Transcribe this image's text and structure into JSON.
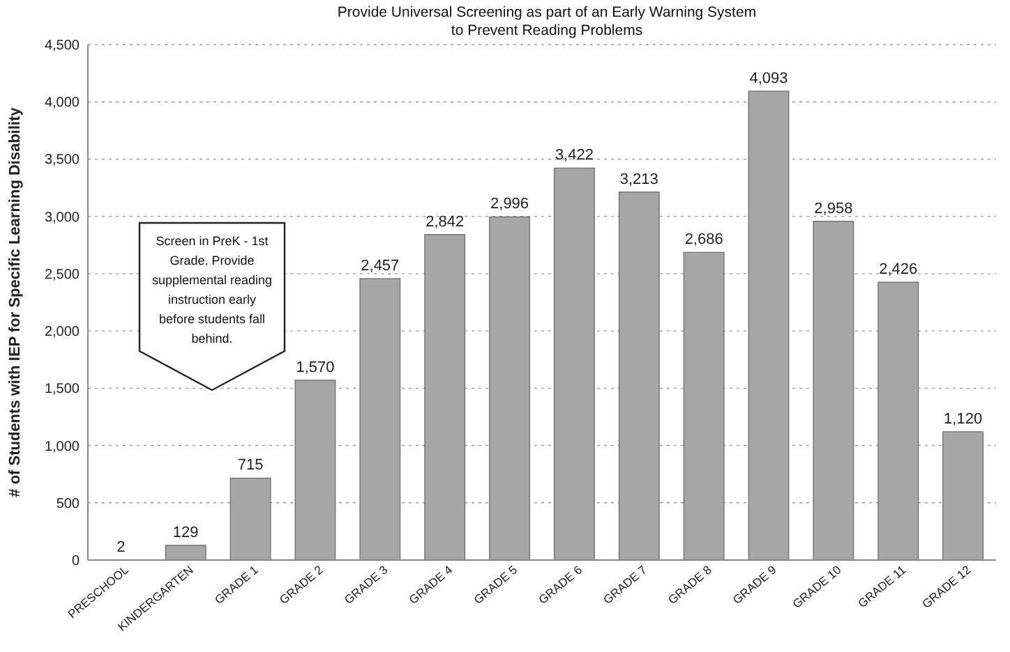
{
  "chart_data": {
    "type": "bar",
    "title": "Provide Universal Screening as part of an Early Warning System\nto Prevent Reading Problems",
    "ylabel": "# of Students with IEP for Specific Learning Disability",
    "categories": [
      "PRESCHOOL",
      "KINDERGARTEN",
      "GRADE 1",
      "GRADE 2",
      "GRADE 3",
      "GRADE 4",
      "GRADE 5",
      "GRADE 6",
      "GRADE 7",
      "GRADE 8",
      "GRADE 9",
      "GRADE 10",
      "GRADE 11",
      "GRADE 12"
    ],
    "values": [
      2,
      129,
      715,
      1570,
      2457,
      2842,
      2996,
      3422,
      3213,
      2686,
      4093,
      2958,
      2426,
      1120
    ],
    "value_labels": [
      "2",
      "129",
      "715",
      "1,570",
      "2,457",
      "2,842",
      "2,996",
      "3,422",
      "3,213",
      "2,686",
      "4,093",
      "2,958",
      "2,426",
      "1,120"
    ],
    "color": "#a6a6a6",
    "ylim": [
      0,
      4500
    ],
    "yticks": [
      0,
      {
        "value": 500,
        "label": "500"
      },
      {
        "value": 1000,
        "label": "1,000"
      },
      {
        "value": 1500,
        "label": "1,500"
      },
      {
        "value": 2000,
        "label": "2,000"
      },
      {
        "value": 2500,
        "label": "2,500"
      },
      {
        "value": 3000,
        "label": "3,000"
      },
      {
        "value": 3500,
        "label": "3,500"
      },
      {
        "value": 4000,
        "label": "4,000"
      },
      {
        "value": 4500,
        "label": "4,500"
      }
    ],
    "grid": "y",
    "annotations": [
      "Screen in PreK - 1st Grade.  Provide supplemental reading instruction early before students fall behind."
    ]
  }
}
